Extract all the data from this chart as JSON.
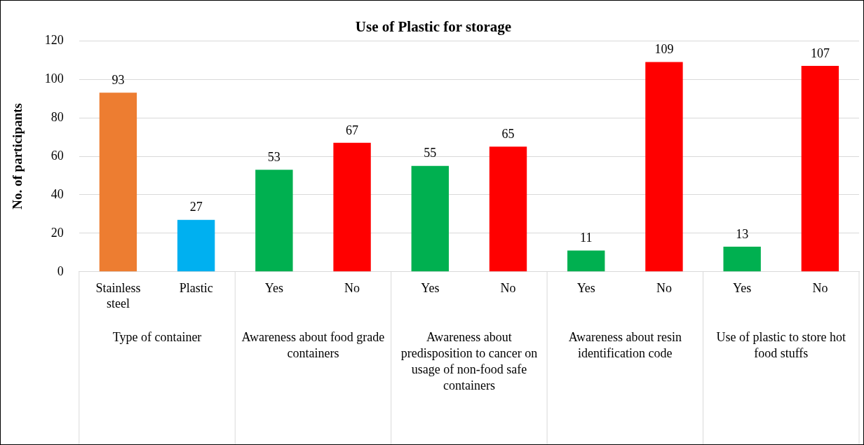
{
  "chart_data": {
    "type": "bar",
    "title": "Use of Plastic for storage",
    "ylabel": "No. of participants",
    "categories": [
      "Stainless steel",
      "Plastic",
      "Yes",
      "No",
      "Yes",
      "No",
      "Yes",
      "No",
      "Yes",
      "No"
    ],
    "values": [
      93,
      27,
      53,
      67,
      55,
      65,
      11,
      109,
      13,
      107
    ],
    "colors": [
      "#ed7d31",
      "#00b0f0",
      "#00b050",
      "#ff0000",
      "#00b050",
      "#ff0000",
      "#00b050",
      "#ff0000",
      "#00b050",
      "#ff0000"
    ],
    "annotations": [
      "Type of container",
      "Awareness about food grade containers",
      "Awareness about predisposition to cancer on usage of non-food safe containers",
      "Awareness about resin identification code",
      "Use of plastic to store hot food stuffs"
    ],
    "ylim": [
      0,
      120
    ],
    "yticks": [
      0,
      20,
      40,
      60,
      80,
      100,
      120
    ],
    "grid": "y",
    "data_labels": true,
    "legend": false
  }
}
